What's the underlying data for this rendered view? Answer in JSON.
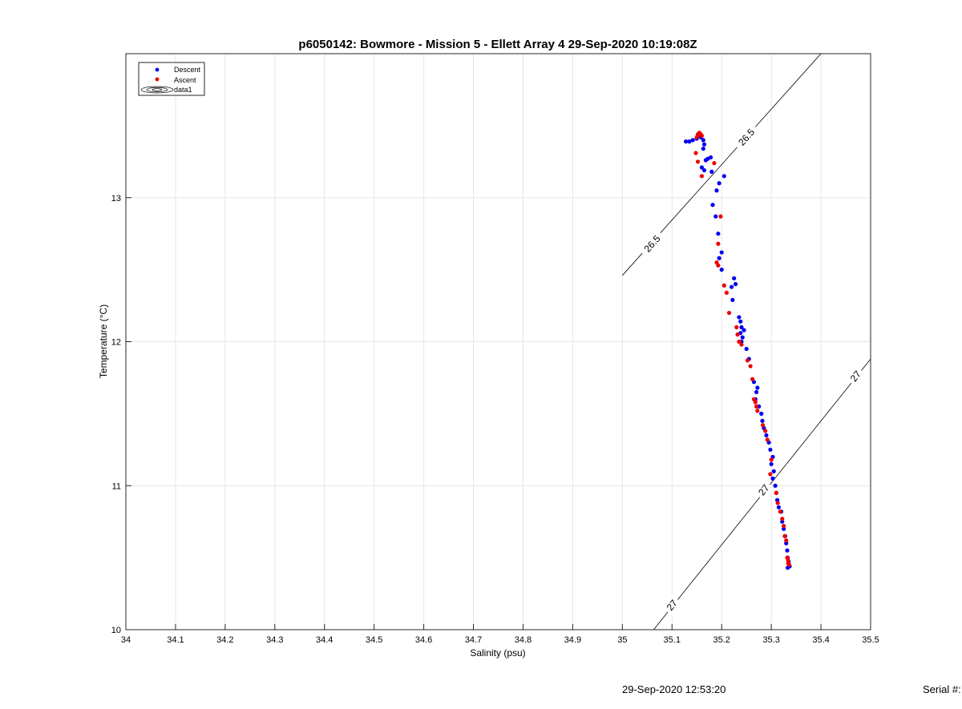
{
  "chart_data": {
    "type": "scatter",
    "title": "p6050142: Bowmore - Mission 5 - Ellett Array 4 29-Sep-2020 10:19:08Z",
    "xlabel": "Salinity (psu)",
    "ylabel": "Temperature (°C)",
    "xlim": [
      34,
      35.5
    ],
    "ylim": [
      10,
      14
    ],
    "x_ticks": [
      34,
      34.1,
      34.2,
      34.3,
      34.4,
      34.5,
      34.6,
      34.7,
      34.8,
      34.9,
      35,
      35.1,
      35.2,
      35.3,
      35.4,
      35.5
    ],
    "x_tick_labels": [
      "34",
      "34.1",
      "34.2",
      "34.3",
      "34.4",
      "34.5",
      "34.6",
      "34.7",
      "34.8",
      "34.9",
      "35",
      "35.1",
      "35.2",
      "35.3",
      "35.4",
      "35.5"
    ],
    "y_ticks": [
      10,
      11,
      12,
      13
    ],
    "y_tick_labels": [
      "10",
      "11",
      "12",
      "13"
    ],
    "grid": true,
    "legend_position": "top-left",
    "legend": [
      "Descent",
      "Ascent",
      "data1"
    ],
    "series": [
      {
        "name": "Descent",
        "color": "#0000ee",
        "points": [
          [
            35.128,
            13.39
          ],
          [
            35.135,
            13.39
          ],
          [
            35.142,
            13.4
          ],
          [
            35.15,
            13.41
          ],
          [
            35.158,
            13.42
          ],
          [
            35.163,
            13.4
          ],
          [
            35.165,
            13.37
          ],
          [
            35.163,
            13.34
          ],
          [
            35.168,
            13.26
          ],
          [
            35.172,
            13.27
          ],
          [
            35.178,
            13.28
          ],
          [
            35.16,
            13.21
          ],
          [
            35.165,
            13.19
          ],
          [
            35.18,
            13.18
          ],
          [
            35.205,
            13.15
          ],
          [
            35.195,
            13.1
          ],
          [
            35.19,
            13.05
          ],
          [
            35.182,
            12.95
          ],
          [
            35.188,
            12.87
          ],
          [
            35.193,
            12.75
          ],
          [
            35.2,
            12.62
          ],
          [
            35.195,
            12.58
          ],
          [
            35.2,
            12.5
          ],
          [
            35.225,
            12.44
          ],
          [
            35.228,
            12.4
          ],
          [
            35.22,
            12.38
          ],
          [
            35.222,
            12.29
          ],
          [
            35.235,
            12.17
          ],
          [
            35.238,
            12.14
          ],
          [
            35.24,
            12.1
          ],
          [
            35.245,
            12.08
          ],
          [
            35.238,
            12.06
          ],
          [
            35.242,
            12.03
          ],
          [
            35.24,
            12.0
          ],
          [
            35.25,
            11.95
          ],
          [
            35.255,
            11.88
          ],
          [
            35.265,
            11.72
          ],
          [
            35.272,
            11.68
          ],
          [
            35.27,
            11.65
          ],
          [
            35.268,
            11.6
          ],
          [
            35.275,
            11.55
          ],
          [
            35.28,
            11.5
          ],
          [
            35.282,
            11.45
          ],
          [
            35.285,
            11.4
          ],
          [
            35.29,
            11.35
          ],
          [
            35.295,
            11.3
          ],
          [
            35.298,
            11.25
          ],
          [
            35.303,
            11.2
          ],
          [
            35.3,
            11.15
          ],
          [
            35.305,
            11.1
          ],
          [
            35.303,
            11.05
          ],
          [
            35.308,
            11.0
          ],
          [
            35.31,
            10.95
          ],
          [
            35.312,
            10.9
          ],
          [
            35.315,
            10.85
          ],
          [
            35.32,
            10.82
          ],
          [
            35.322,
            10.75
          ],
          [
            35.325,
            10.7
          ],
          [
            35.328,
            10.65
          ],
          [
            35.33,
            10.6
          ],
          [
            35.332,
            10.55
          ],
          [
            35.333,
            10.5
          ],
          [
            35.335,
            10.47
          ],
          [
            35.337,
            10.44
          ],
          [
            35.333,
            10.43
          ]
        ]
      },
      {
        "name": "Ascent",
        "color": "#ee0000",
        "points": [
          [
            35.15,
            13.42
          ],
          [
            35.152,
            13.44
          ],
          [
            35.155,
            13.45
          ],
          [
            35.158,
            13.44
          ],
          [
            35.16,
            13.43
          ],
          [
            35.155,
            13.45
          ],
          [
            35.148,
            13.31
          ],
          [
            35.152,
            13.25
          ],
          [
            35.16,
            13.15
          ],
          [
            35.185,
            13.24
          ],
          [
            35.198,
            12.87
          ],
          [
            35.193,
            12.68
          ],
          [
            35.19,
            12.55
          ],
          [
            35.193,
            12.53
          ],
          [
            35.205,
            12.39
          ],
          [
            35.21,
            12.34
          ],
          [
            35.215,
            12.2
          ],
          [
            35.23,
            12.1
          ],
          [
            35.232,
            12.05
          ],
          [
            35.235,
            12.0
          ],
          [
            35.24,
            11.98
          ],
          [
            35.252,
            11.87
          ],
          [
            35.258,
            11.83
          ],
          [
            35.262,
            11.74
          ],
          [
            35.265,
            11.6
          ],
          [
            35.27,
            11.55
          ],
          [
            35.272,
            11.52
          ],
          [
            35.268,
            11.58
          ],
          [
            35.283,
            11.42
          ],
          [
            35.288,
            11.38
          ],
          [
            35.292,
            11.32
          ],
          [
            35.3,
            11.18
          ],
          [
            35.298,
            11.08
          ],
          [
            35.31,
            10.95
          ],
          [
            35.313,
            10.88
          ],
          [
            35.318,
            10.82
          ],
          [
            35.322,
            10.77
          ],
          [
            35.325,
            10.72
          ],
          [
            35.327,
            10.65
          ],
          [
            35.33,
            10.62
          ],
          [
            35.332,
            10.5
          ],
          [
            35.334,
            10.46
          ],
          [
            35.336,
            10.45
          ],
          [
            35.334,
            10.48
          ]
        ]
      }
    ],
    "contours": [
      {
        "name": "data1",
        "level": "26.5",
        "points": [
          [
            35.0,
            12.46
          ],
          [
            35.4,
            14.0
          ]
        ],
        "labels": [
          {
            "text": "26.5",
            "x": 35.06,
            "y": 12.68
          },
          {
            "text": "26.5",
            "x": 35.25,
            "y": 13.42
          }
        ]
      },
      {
        "name": "data1",
        "level": "27",
        "points": [
          [
            35.063,
            10.0
          ],
          [
            35.5,
            11.88
          ]
        ],
        "labels": [
          {
            "text": "27",
            "x": 35.1,
            "y": 10.17
          },
          {
            "text": "27",
            "x": 35.285,
            "y": 10.97
          },
          {
            "text": "27",
            "x": 35.47,
            "y": 11.76
          }
        ]
      }
    ]
  },
  "footer": {
    "timestamp": "29-Sep-2020 12:53:20",
    "serial": "Serial #:"
  }
}
